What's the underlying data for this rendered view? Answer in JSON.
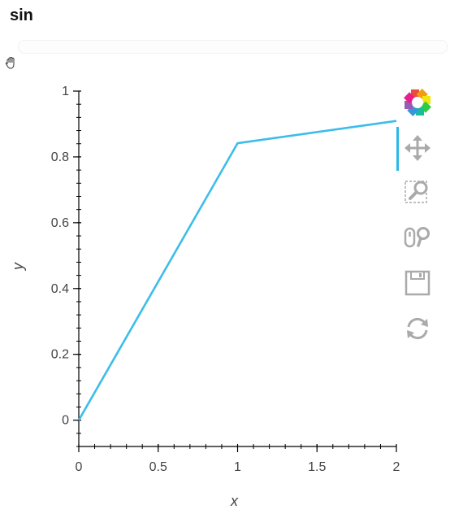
{
  "title": "sin",
  "toolbar": {
    "tools": [
      {
        "name": "bokeh-logo-icon",
        "interactable": true
      },
      {
        "name": "pan-tool-icon",
        "interactable": true,
        "active": true
      },
      {
        "name": "box-zoom-tool-icon",
        "interactable": true
      },
      {
        "name": "wheel-zoom-tool-icon",
        "interactable": true
      },
      {
        "name": "save-tool-icon",
        "interactable": true
      },
      {
        "name": "reset-tool-icon",
        "interactable": true
      }
    ],
    "accent": "#2bb8e8"
  },
  "chart_data": {
    "type": "line",
    "title": "sin",
    "xlabel": "x",
    "ylabel": "y",
    "xlim": [
      0,
      2
    ],
    "ylim": [
      -0.08,
      1
    ],
    "x_ticks": [
      0,
      0.5,
      1,
      1.5,
      2
    ],
    "x_tick_labels": [
      "0",
      "0.5",
      "1",
      "1.5",
      "2"
    ],
    "y_ticks": [
      0,
      0.2,
      0.4,
      0.6,
      0.8,
      1
    ],
    "y_tick_labels": [
      "0",
      "0.2",
      "0.4",
      "0.6",
      "0.8",
      "1"
    ],
    "grid": false,
    "series": [
      {
        "x": [
          0,
          1,
          2
        ],
        "y": [
          0,
          0.8415,
          0.9093
        ],
        "color": "#3cbde9"
      }
    ]
  }
}
